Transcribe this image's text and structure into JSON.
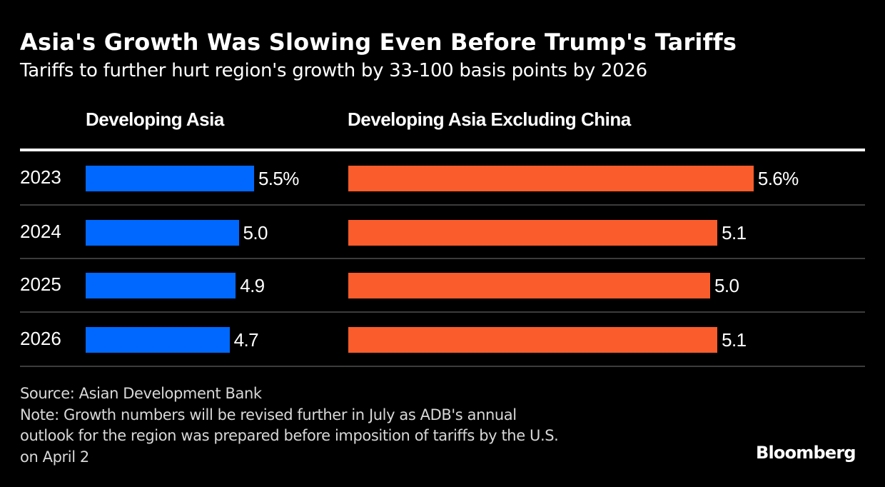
{
  "chart_data": {
    "type": "bar",
    "orientation": "horizontal",
    "title": "Asia's Growth Was Slowing Even Before Trump's Tariffs",
    "subtitle": "Tariffs to further hurt region's growth by 33-100 basis points by 2026",
    "categories": [
      "2023",
      "2024",
      "2025",
      "2026"
    ],
    "series": [
      {
        "name": "Developing Asia",
        "color": "#0068ff",
        "values": [
          5.5,
          5.0,
          4.9,
          4.7
        ],
        "labels": [
          "5.5%",
          "5.0",
          "4.9",
          "4.7"
        ]
      },
      {
        "name": "Developing Asia Excluding China",
        "color": "#fa5c2c",
        "values": [
          5.6,
          5.1,
          5.0,
          5.1
        ],
        "labels": [
          "5.6%",
          "5.1",
          "5.0",
          "5.1"
        ]
      }
    ],
    "xlabel": "",
    "ylabel": "",
    "grid": false,
    "legend": "none",
    "source": "Source: Asian Development Bank",
    "note_lines": [
      "Note: Growth numbers will be revised further in July as ADB's annual",
      "outlook for the region was prepared before imposition of tariffs by the U.S.",
      "on April 2"
    ],
    "brand": "Bloomberg"
  }
}
